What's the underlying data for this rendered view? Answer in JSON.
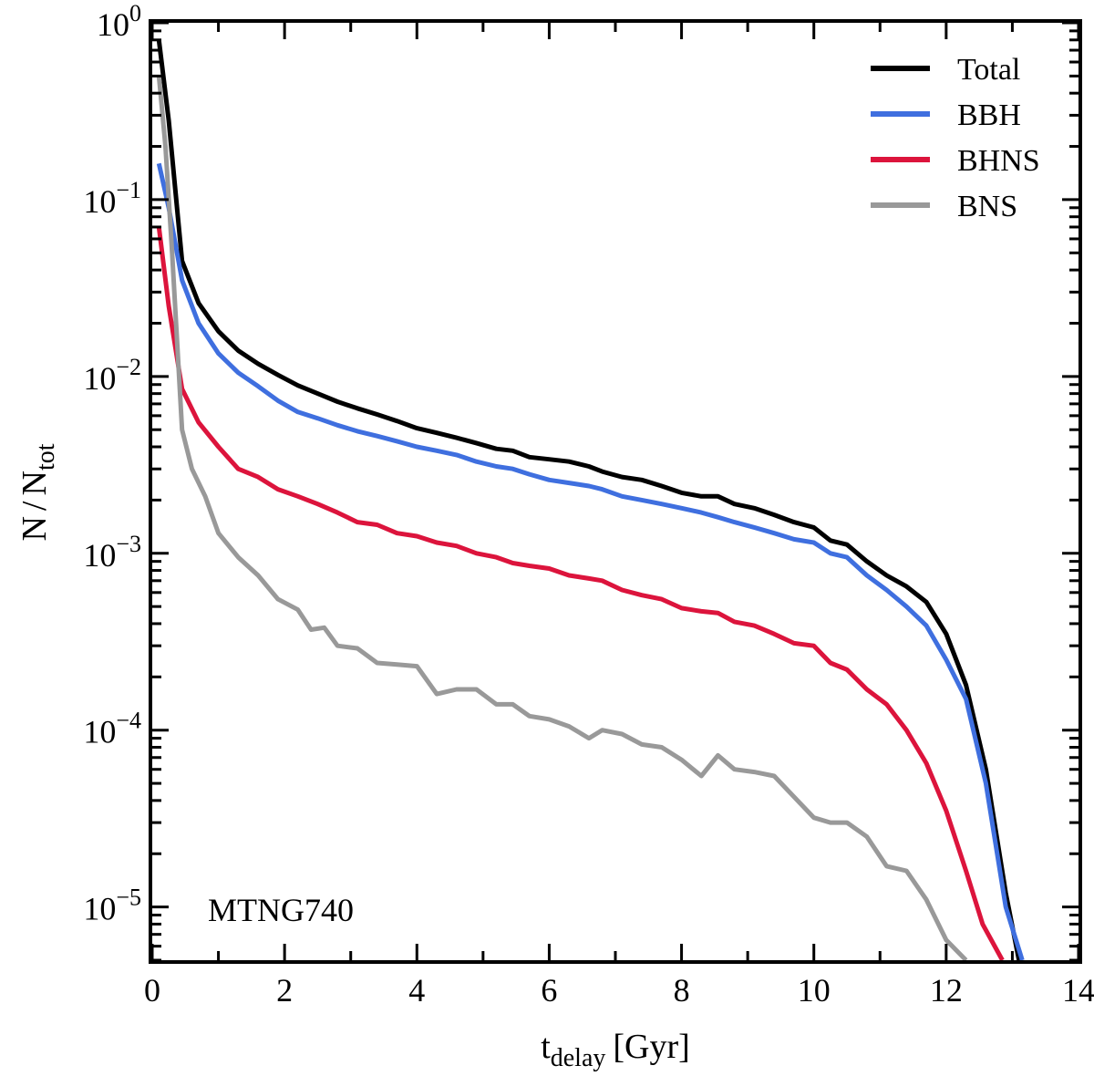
{
  "chart_data": {
    "type": "line",
    "xlabel": "t",
    "xlabel_sub": "delay",
    "xlabel_unit": "[Gyr]",
    "ylabel_num": "N",
    "ylabel_sep": "/",
    "ylabel_den": "N",
    "ylabel_den_sub": "tot",
    "xlim": [
      0,
      14
    ],
    "ylim": [
      5e-06,
      1
    ],
    "yscale": "log",
    "xticks": [
      0,
      2,
      4,
      6,
      8,
      10,
      12,
      14
    ],
    "yticks": [
      {
        "value": 1e-05,
        "base": "10",
        "exp": "−5"
      },
      {
        "value": 0.0001,
        "base": "10",
        "exp": "−4"
      },
      {
        "value": 0.001,
        "base": "10",
        "exp": "−3"
      },
      {
        "value": 0.01,
        "base": "10",
        "exp": "−2"
      },
      {
        "value": 0.1,
        "base": "10",
        "exp": "−1"
      },
      {
        "value": 1,
        "base": "10",
        "exp": "0"
      }
    ],
    "annotation": "MTNG740",
    "legend_position": "top-right",
    "series": [
      {
        "name": "Total",
        "color": "#000000",
        "x": [
          0.1,
          0.25,
          0.45,
          0.7,
          1.0,
          1.3,
          1.6,
          1.9,
          2.2,
          2.5,
          2.8,
          3.1,
          3.4,
          3.7,
          4.0,
          4.3,
          4.6,
          4.9,
          5.2,
          5.45,
          5.7,
          6.0,
          6.3,
          6.6,
          6.8,
          7.1,
          7.4,
          7.7,
          8.0,
          8.3,
          8.55,
          8.8,
          9.1,
          9.4,
          9.7,
          10.0,
          10.25,
          10.5,
          10.8,
          11.1,
          11.4,
          11.7,
          12.0,
          12.3,
          12.6,
          12.9,
          13.1
        ],
        "values": [
          0.8,
          0.28,
          0.045,
          0.026,
          0.018,
          0.014,
          0.0118,
          0.0102,
          0.0089,
          0.008,
          0.0072,
          0.0066,
          0.0061,
          0.0056,
          0.0051,
          0.0048,
          0.0045,
          0.0042,
          0.0039,
          0.0038,
          0.0035,
          0.0034,
          0.0033,
          0.0031,
          0.0029,
          0.0027,
          0.0026,
          0.0024,
          0.0022,
          0.0021,
          0.0021,
          0.0019,
          0.0018,
          0.00165,
          0.0015,
          0.0014,
          0.00118,
          0.00112,
          0.0009,
          0.00075,
          0.00065,
          0.00053,
          0.00035,
          0.00018,
          6e-05,
          1.2e-05,
          5e-06
        ]
      },
      {
        "name": "BBH",
        "color": "#3f6fdf",
        "x": [
          0.1,
          0.25,
          0.45,
          0.7,
          1.0,
          1.3,
          1.6,
          1.9,
          2.2,
          2.5,
          2.8,
          3.1,
          3.4,
          3.7,
          4.0,
          4.3,
          4.6,
          4.9,
          5.2,
          5.45,
          5.7,
          6.0,
          6.3,
          6.6,
          6.8,
          7.1,
          7.4,
          7.7,
          8.0,
          8.3,
          8.55,
          8.8,
          9.1,
          9.4,
          9.7,
          10.0,
          10.25,
          10.5,
          10.8,
          11.1,
          11.4,
          11.7,
          12.0,
          12.3,
          12.6,
          12.9,
          13.15
        ],
        "values": [
          0.16,
          0.09,
          0.035,
          0.02,
          0.0135,
          0.0105,
          0.0088,
          0.0073,
          0.0063,
          0.0058,
          0.0053,
          0.0049,
          0.0046,
          0.0043,
          0.004,
          0.0038,
          0.0036,
          0.0033,
          0.0031,
          0.003,
          0.0028,
          0.0026,
          0.0025,
          0.0024,
          0.0023,
          0.0021,
          0.002,
          0.0019,
          0.0018,
          0.0017,
          0.0016,
          0.0015,
          0.0014,
          0.0013,
          0.0012,
          0.00115,
          0.001,
          0.00095,
          0.00075,
          0.00062,
          0.0005,
          0.00039,
          0.00025,
          0.00015,
          5e-05,
          1e-05,
          5e-06
        ]
      },
      {
        "name": "BHNS",
        "color": "#dc143c",
        "x": [
          0.1,
          0.25,
          0.45,
          0.7,
          1.0,
          1.3,
          1.6,
          1.9,
          2.2,
          2.5,
          2.8,
          3.1,
          3.4,
          3.7,
          4.0,
          4.3,
          4.6,
          4.9,
          5.2,
          5.45,
          5.7,
          6.0,
          6.3,
          6.6,
          6.8,
          7.1,
          7.4,
          7.7,
          8.0,
          8.3,
          8.55,
          8.8,
          9.1,
          9.4,
          9.7,
          10.0,
          10.25,
          10.5,
          10.8,
          11.1,
          11.4,
          11.7,
          12.0,
          12.3,
          12.55,
          12.85
        ],
        "values": [
          0.07,
          0.025,
          0.0085,
          0.0055,
          0.004,
          0.003,
          0.0027,
          0.0023,
          0.0021,
          0.0019,
          0.0017,
          0.0015,
          0.00145,
          0.0013,
          0.00125,
          0.00115,
          0.0011,
          0.001,
          0.00095,
          0.00088,
          0.00085,
          0.00082,
          0.00075,
          0.00072,
          0.0007,
          0.00062,
          0.00058,
          0.00055,
          0.00049,
          0.00047,
          0.00046,
          0.00041,
          0.00039,
          0.00035,
          0.00031,
          0.0003,
          0.00024,
          0.00022,
          0.00017,
          0.00014,
          0.0001,
          6.5e-05,
          3.5e-05,
          1.6e-05,
          8e-06,
          5e-06
        ]
      },
      {
        "name": "BNS",
        "color": "#999999",
        "x": [
          0.1,
          0.2,
          0.3,
          0.45,
          0.6,
          0.8,
          1.0,
          1.3,
          1.6,
          1.9,
          2.2,
          2.4,
          2.6,
          2.8,
          3.1,
          3.4,
          3.7,
          4.0,
          4.3,
          4.6,
          4.9,
          5.2,
          5.45,
          5.7,
          6.0,
          6.3,
          6.6,
          6.8,
          7.1,
          7.4,
          7.7,
          8.0,
          8.3,
          8.55,
          8.8,
          9.1,
          9.4,
          9.7,
          10.0,
          10.25,
          10.5,
          10.8,
          11.1,
          11.4,
          11.7,
          12.0,
          12.3
        ],
        "values": [
          0.5,
          0.2,
          0.05,
          0.005,
          0.003,
          0.0021,
          0.0013,
          0.00095,
          0.00075,
          0.00055,
          0.00048,
          0.00037,
          0.00038,
          0.0003,
          0.00029,
          0.00024,
          0.000235,
          0.00023,
          0.00016,
          0.00017,
          0.00017,
          0.00014,
          0.00014,
          0.00012,
          0.000115,
          0.000105,
          9e-05,
          0.0001,
          9.5e-05,
          8.3e-05,
          8e-05,
          6.8e-05,
          5.5e-05,
          7.2e-05,
          6e-05,
          5.8e-05,
          5.5e-05,
          4.2e-05,
          3.2e-05,
          3e-05,
          3e-05,
          2.5e-05,
          1.7e-05,
          1.6e-05,
          1.1e-05,
          6.5e-06,
          5e-06
        ]
      }
    ]
  }
}
